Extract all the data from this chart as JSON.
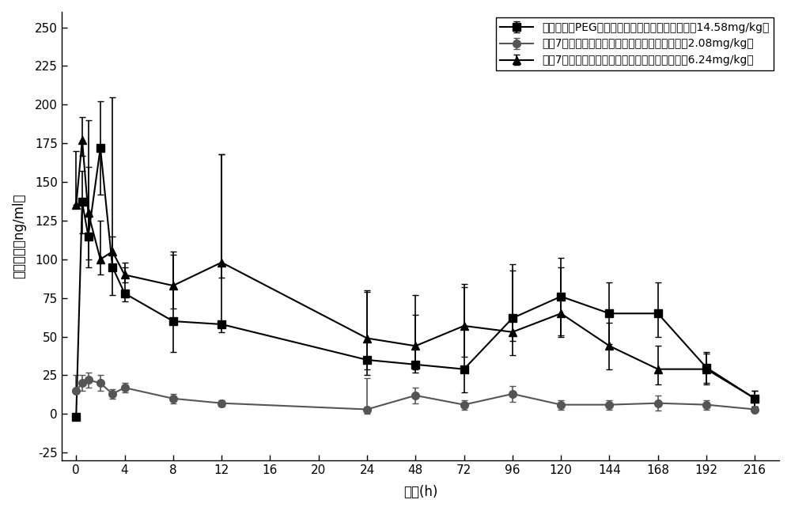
{
  "series1": {
    "label": "肌肉注射经PEG修饰的黄体酮纳米粒药时曲线图（14.58mg/kg）",
    "x": [
      0,
      0.5,
      1,
      2,
      3,
      4,
      8,
      12,
      24,
      48,
      72,
      96,
      120,
      144,
      168,
      192,
      216
    ],
    "y": [
      -2,
      137,
      115,
      172,
      95,
      78,
      60,
      58,
      35,
      32,
      29,
      62,
      76,
      65,
      65,
      30,
      10
    ],
    "yerr_lo": [
      2,
      20,
      20,
      30,
      18,
      5,
      20,
      5,
      10,
      5,
      15,
      15,
      25,
      20,
      15,
      10,
      5
    ],
    "yerr_hi": [
      2,
      20,
      75,
      30,
      110,
      20,
      45,
      110,
      45,
      45,
      55,
      35,
      25,
      20,
      20,
      10,
      5
    ],
    "color": "#000000",
    "marker": "s",
    "linestyle": "-"
  },
  "series2": {
    "label": "重奴7天肌肉注射市售黄体酮油溶液药时曲线图（2.08mg/kg）",
    "x": [
      0,
      0.5,
      1,
      2,
      3,
      4,
      8,
      12,
      24,
      48,
      72,
      96,
      120,
      144,
      168,
      192,
      216
    ],
    "y": [
      15,
      20,
      22,
      20,
      13,
      17,
      10,
      7,
      3,
      12,
      6,
      13,
      6,
      6,
      7,
      6,
      3
    ],
    "yerr_lo": [
      0,
      5,
      5,
      5,
      3,
      3,
      3,
      2,
      3,
      5,
      3,
      5,
      3,
      3,
      5,
      3,
      2
    ],
    "yerr_hi": [
      10,
      5,
      5,
      5,
      3,
      3,
      3,
      2,
      20,
      5,
      3,
      5,
      3,
      3,
      5,
      3,
      2
    ],
    "color": "#555555",
    "marker": "o",
    "linestyle": "-"
  },
  "series3": {
    "label": "重奴7天肌肉注射市售黄体酮油溶液药时曲线图（6.24mg/kg）",
    "x": [
      0,
      0.5,
      1,
      2,
      3,
      4,
      8,
      12,
      24,
      48,
      72,
      96,
      120,
      144,
      168,
      192,
      216
    ],
    "y": [
      135,
      177,
      130,
      100,
      105,
      90,
      83,
      98,
      49,
      44,
      57,
      53,
      65,
      44,
      29,
      29,
      10
    ],
    "yerr_lo": [
      0,
      10,
      30,
      10,
      10,
      5,
      15,
      10,
      20,
      15,
      20,
      15,
      15,
      15,
      10,
      10,
      5
    ],
    "yerr_hi": [
      35,
      15,
      30,
      25,
      10,
      5,
      20,
      70,
      30,
      20,
      25,
      40,
      30,
      15,
      15,
      10,
      5
    ],
    "color": "#000000",
    "marker": "^",
    "linestyle": "-"
  },
  "xlabel": "时间(h)",
  "ylabel": "血药浓度（ng/ml）",
  "tick_positions": [
    0,
    4,
    8,
    12,
    16,
    20,
    24,
    48,
    72,
    96,
    120,
    144,
    168,
    192,
    216
  ],
  "tick_labels": [
    "0",
    "4",
    "8",
    "12",
    "16",
    "20",
    "24",
    "48",
    "72",
    "96",
    "120",
    "144",
    "168",
    "192",
    "216"
  ],
  "yticks": [
    -25,
    0,
    25,
    50,
    75,
    100,
    125,
    150,
    175,
    200,
    225,
    250
  ],
  "ylim": [
    -30,
    260
  ],
  "background_color": "#ffffff",
  "markersize": 7,
  "linewidth": 1.5,
  "capsize": 3,
  "elinewidth": 1.2,
  "axis_fontsize": 12,
  "tick_fontsize": 11,
  "legend_fontsize": 10
}
